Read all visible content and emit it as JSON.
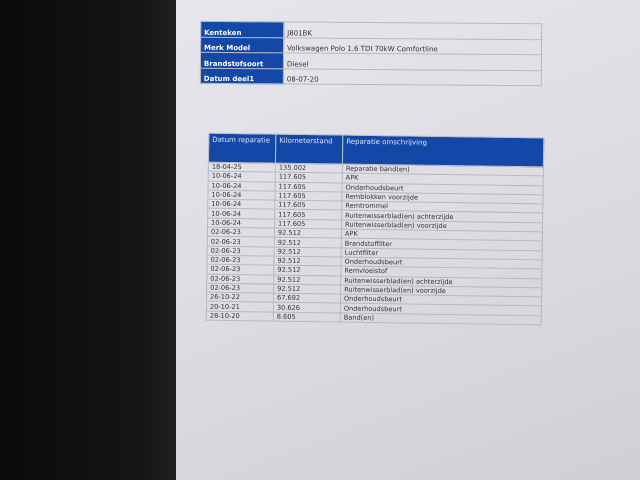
{
  "vehicle": [
    {
      "label": "Kenteken",
      "value": "J801BK"
    },
    {
      "label": "Merk Model",
      "value": "Volkswagen Polo 1.6 TDI 70kW Comfortline"
    },
    {
      "label": "Brandstofsoort",
      "value": "Diesel"
    },
    {
      "label": "Datum deel1",
      "value": "08-07-20"
    }
  ],
  "repairs": {
    "headers": [
      "Datum reparatie",
      "Kilometerstand",
      "Reparatie omschrijving"
    ],
    "rows": [
      [
        "18-04-25",
        "135.002",
        "Reparatie band(en)"
      ],
      [
        "10-06-24",
        "117.605",
        "APK"
      ],
      [
        "10-06-24",
        "117.605",
        "Onderhoudsbeurt"
      ],
      [
        "10-06-24",
        "117.605",
        "Remblokken voorzijde"
      ],
      [
        "10-06-24",
        "117.605",
        "Remtrommel"
      ],
      [
        "10-06-24",
        "117.605",
        "Ruitenwisserblad(en) achterzijde"
      ],
      [
        "10-06-24",
        "117.605",
        "Ruitenwisserblad(en) voorzijde"
      ],
      [
        "02-06-23",
        "92.512",
        "APK"
      ],
      [
        "02-06-23",
        "92.512",
        "Brandstoffilter"
      ],
      [
        "02-06-23",
        "92.512",
        "Luchtfilter"
      ],
      [
        "02-06-23",
        "92.512",
        "Onderhoudsbeurt"
      ],
      [
        "02-06-23",
        "92.512",
        "Remvloeistof"
      ],
      [
        "02-06-23",
        "92.512",
        "Ruitenwisserblad(en) achterzijde"
      ],
      [
        "02-06-23",
        "92.512",
        "Ruitenwisserblad(en) voorzijde"
      ],
      [
        "26-10-22",
        "67.692",
        "Onderhoudsbeurt"
      ],
      [
        "20-10-21",
        "30.626",
        "Onderhoudsbeurt"
      ],
      [
        "28-10-20",
        "8.605",
        "Band(en)"
      ]
    ]
  },
  "colors": {
    "header_bg": "#1348a8"
  }
}
